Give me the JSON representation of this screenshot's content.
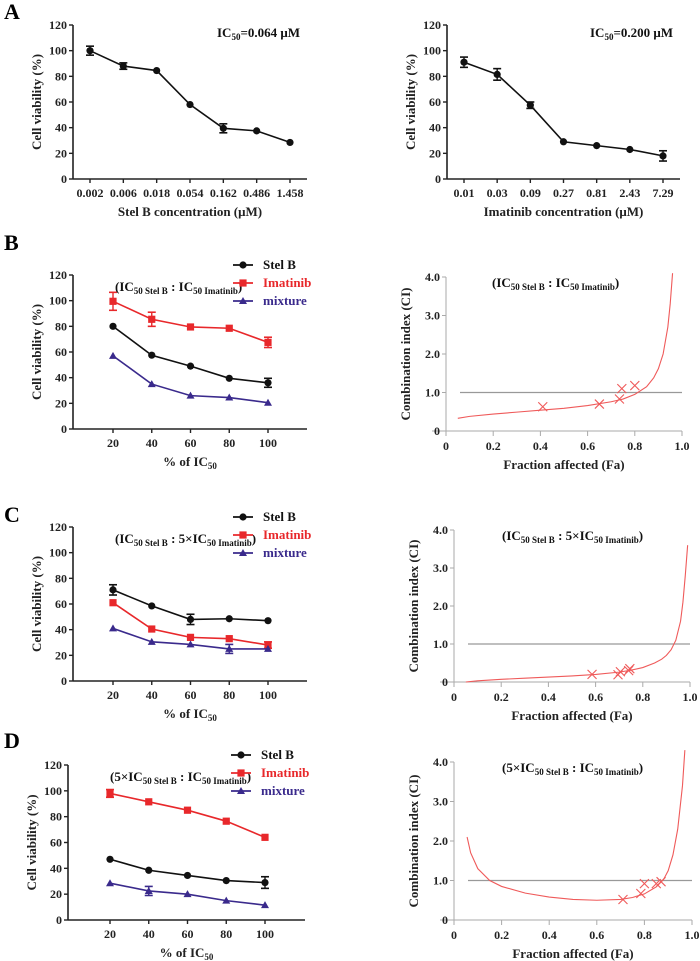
{
  "figure": {
    "panel_labels": [
      "A",
      "B",
      "C",
      "D"
    ],
    "colors": {
      "stel_b": "#111111",
      "imatinib": "#e8282b",
      "mixture": "#3a2a8c",
      "ci_curve": "#ef5a5a",
      "ref_line": "#999999",
      "axis": "#222222"
    }
  },
  "chart_data": [
    {
      "id": "A-left",
      "panel": "A",
      "type": "line",
      "title": "",
      "annotation": "IC50=0.064 μM",
      "annotation_parts": {
        "main": "IC",
        "sub": "50",
        "rest": "=0.064 μM"
      },
      "xlabel": "Stel B concentration (μM)",
      "ylabel": "Cell viability (%)",
      "categories": [
        "0.002",
        "0.006",
        "0.018",
        "0.054",
        "0.162",
        "0.486",
        "1.458"
      ],
      "ylim": [
        0,
        120
      ],
      "yticks": [
        0,
        20,
        40,
        60,
        80,
        100,
        120
      ],
      "series": [
        {
          "name": "Stel B",
          "color_key": "stel_b",
          "marker": "circle",
          "values": [
            100,
            88,
            84.5,
            58,
            39.5,
            37.5,
            28.5
          ],
          "errors": [
            3.5,
            2.5,
            0,
            0,
            3.5,
            0,
            0
          ]
        }
      ]
    },
    {
      "id": "A-right",
      "panel": "A",
      "type": "line",
      "annotation_parts": {
        "main": "IC",
        "sub": "50",
        "rest": "=0.200 μM"
      },
      "annotation": "IC50=0.200 μM",
      "xlabel": "Imatinib concentration (μM)",
      "ylabel": "Cell viability (%)",
      "categories": [
        "0.01",
        "0.03",
        "0.09",
        "0.27",
        "0.81",
        "2.43",
        "7.29"
      ],
      "ylim": [
        0,
        120
      ],
      "yticks": [
        0,
        20,
        40,
        60,
        80,
        100,
        120
      ],
      "series": [
        {
          "name": "Imatinib",
          "color_key": "stel_b",
          "marker": "circle",
          "values": [
            91,
            81.5,
            57.5,
            29,
            26,
            23,
            18
          ],
          "errors": [
            4,
            4.5,
            2.5,
            0,
            0,
            0,
            4
          ]
        }
      ]
    },
    {
      "id": "B-left",
      "panel": "B",
      "type": "line",
      "annotation": "(IC50 Stel B : IC50 Imatinib)",
      "xlabel": "% of IC50",
      "xlabel_parts": {
        "main": "% of IC",
        "sub": "50"
      },
      "ylabel": "Cell viability (%)",
      "categories": [
        "20",
        "40",
        "60",
        "80",
        "100"
      ],
      "ylim": [
        0,
        120
      ],
      "yticks": [
        0,
        20,
        40,
        60,
        80,
        100,
        120
      ],
      "legend": [
        "Stel B",
        "Imatinib",
        "mixture"
      ],
      "legend_position": "top-right",
      "series": [
        {
          "name": "Stel B",
          "color_key": "stel_b",
          "marker": "circle",
          "values": [
            80,
            57.5,
            49,
            39.5,
            36
          ],
          "errors": [
            0,
            0,
            0,
            0,
            3.5
          ]
        },
        {
          "name": "Imatinib",
          "color_key": "imatinib",
          "marker": "square",
          "values": [
            99.5,
            85.5,
            79.5,
            78.5,
            67.5
          ],
          "errors": [
            7,
            5.5,
            0,
            0,
            4
          ]
        },
        {
          "name": "mixture",
          "color_key": "mixture",
          "marker": "triangle",
          "values": [
            57,
            35,
            26,
            24.5,
            20.5
          ],
          "errors": [
            0,
            0,
            0,
            0,
            0
          ]
        }
      ]
    },
    {
      "id": "B-right",
      "panel": "B",
      "type": "scatter",
      "annotation": "(IC50 Stel B : IC50 Imatinib)",
      "xlabel": "Fraction affected (Fa)",
      "ylabel": "Combination index (CI)",
      "xlim": [
        0,
        1.0
      ],
      "xticks": [
        "0",
        "0.2",
        "0.4",
        "0.6",
        "0.8",
        "1.0"
      ],
      "ylim": [
        0,
        4.0
      ],
      "yticks": [
        "0",
        "1.0",
        "2.0",
        "3.0",
        "4.0"
      ],
      "reference_line": 1.0,
      "points": [
        {
          "fa": 0.41,
          "ci": 0.63
        },
        {
          "fa": 0.65,
          "ci": 0.7
        },
        {
          "fa": 0.735,
          "ci": 0.83
        },
        {
          "fa": 0.745,
          "ci": 1.1
        },
        {
          "fa": 0.8,
          "ci": 1.18
        }
      ],
      "curve": {
        "fa": [
          0.05,
          0.1,
          0.2,
          0.3,
          0.4,
          0.5,
          0.6,
          0.7,
          0.75,
          0.8,
          0.85,
          0.88,
          0.9,
          0.92,
          0.94,
          0.95,
          0.96
        ],
        "ci": [
          0.33,
          0.38,
          0.44,
          0.49,
          0.54,
          0.59,
          0.66,
          0.76,
          0.83,
          0.95,
          1.15,
          1.38,
          1.62,
          2.0,
          2.7,
          3.3,
          4.1
        ]
      }
    },
    {
      "id": "C-left",
      "panel": "C",
      "type": "line",
      "annotation": "(IC50 Stel B : 5×IC50 Imatinib)",
      "xlabel": "% of IC50",
      "xlabel_parts": {
        "main": "% of IC",
        "sub": "50"
      },
      "ylabel": "Cell viability (%)",
      "categories": [
        "20",
        "40",
        "60",
        "80",
        "100"
      ],
      "ylim": [
        0,
        120
      ],
      "yticks": [
        0,
        20,
        40,
        60,
        80,
        100,
        120
      ],
      "legend": [
        "Stel B",
        "Imatinib",
        "mixture"
      ],
      "legend_position": "top-right",
      "series": [
        {
          "name": "Stel B",
          "color_key": "stel_b",
          "marker": "circle",
          "values": [
            71,
            58.5,
            48,
            48.5,
            47
          ],
          "errors": [
            4,
            0,
            4,
            0,
            0
          ]
        },
        {
          "name": "Imatinib",
          "color_key": "imatinib",
          "marker": "square",
          "values": [
            61,
            40.5,
            34,
            33,
            28
          ],
          "errors": [
            0,
            0,
            0,
            0,
            2.5
          ]
        },
        {
          "name": "mixture",
          "color_key": "mixture",
          "marker": "triangle",
          "values": [
            41,
            30.5,
            28.5,
            25,
            25
          ],
          "errors": [
            0,
            0,
            0,
            3.5,
            0
          ]
        }
      ]
    },
    {
      "id": "C-right",
      "panel": "C",
      "type": "scatter",
      "annotation": "(IC50 Stel B : 5×IC50 Imatinib)",
      "xlabel": "Fraction affected (Fa)",
      "ylabel": "Combination index (CI)",
      "xlim": [
        0,
        1.0
      ],
      "xticks": [
        "0",
        "0.2",
        "0.4",
        "0.6",
        "0.8",
        "1.0"
      ],
      "ylim": [
        0,
        4.0
      ],
      "yticks": [
        "0",
        "1.0",
        "2.0",
        "3.0",
        "4.0"
      ],
      "reference_line": 1.0,
      "points": [
        {
          "fa": 0.585,
          "ci": 0.2
        },
        {
          "fa": 0.695,
          "ci": 0.19
        },
        {
          "fa": 0.705,
          "ci": 0.27
        },
        {
          "fa": 0.74,
          "ci": 0.3
        },
        {
          "fa": 0.745,
          "ci": 0.35
        }
      ],
      "curve": {
        "fa": [
          0.05,
          0.1,
          0.2,
          0.3,
          0.4,
          0.5,
          0.6,
          0.7,
          0.75,
          0.8,
          0.85,
          0.88,
          0.9,
          0.92,
          0.94,
          0.96,
          0.97,
          0.98,
          0.99
        ],
        "ci": [
          0.0,
          0.03,
          0.07,
          0.1,
          0.13,
          0.16,
          0.2,
          0.26,
          0.31,
          0.38,
          0.5,
          0.6,
          0.7,
          0.85,
          1.1,
          1.6,
          2.1,
          2.8,
          3.6
        ]
      }
    },
    {
      "id": "D-left",
      "panel": "D",
      "type": "line",
      "annotation": "(5×IC50 Stel B : IC50 Imatinib)",
      "xlabel": "% of IC50",
      "xlabel_parts": {
        "main": "% of IC",
        "sub": "50"
      },
      "ylabel": "Cell viability (%)",
      "categories": [
        "20",
        "40",
        "60",
        "80",
        "100"
      ],
      "ylim": [
        0,
        120
      ],
      "yticks": [
        0,
        20,
        40,
        60,
        80,
        100,
        120
      ],
      "legend": [
        "Stel B",
        "Imatinib",
        "mixture"
      ],
      "legend_position": "top-right",
      "series": [
        {
          "name": "Stel B",
          "color_key": "stel_b",
          "marker": "circle",
          "values": [
            47,
            38.5,
            34.5,
            30.5,
            29
          ],
          "errors": [
            0,
            0,
            0,
            0,
            4.5
          ]
        },
        {
          "name": "Imatinib",
          "color_key": "imatinib",
          "marker": "square",
          "values": [
            98,
            91.5,
            85,
            76.5,
            64
          ],
          "errors": [
            3,
            0,
            0,
            0,
            0
          ]
        },
        {
          "name": "mixture",
          "color_key": "mixture",
          "marker": "triangle",
          "values": [
            28.5,
            22.5,
            20,
            15,
            11.5
          ],
          "errors": [
            0,
            3.5,
            0,
            0,
            0
          ]
        }
      ]
    },
    {
      "id": "D-right",
      "panel": "D",
      "type": "scatter",
      "annotation": "(5×IC50 Stel B : IC50 Imatinib)",
      "xlabel": "Fraction affected (Fa)",
      "ylabel": "Combination index (CI)",
      "xlim": [
        0,
        1.0
      ],
      "xticks": [
        "0",
        "0.2",
        "0.4",
        "0.6",
        "0.8",
        "1.0"
      ],
      "ylim": [
        0,
        4.0
      ],
      "yticks": [
        "0",
        "1.0",
        "2.0",
        "3.0",
        "4.0"
      ],
      "reference_line": 1.0,
      "points": [
        {
          "fa": 0.71,
          "ci": 0.52
        },
        {
          "fa": 0.785,
          "ci": 0.67
        },
        {
          "fa": 0.8,
          "ci": 0.92
        },
        {
          "fa": 0.85,
          "ci": 0.92
        },
        {
          "fa": 0.87,
          "ci": 0.97
        }
      ],
      "curve": {
        "fa": [
          0.055,
          0.07,
          0.1,
          0.15,
          0.2,
          0.3,
          0.4,
          0.5,
          0.6,
          0.7,
          0.75,
          0.8,
          0.85,
          0.88,
          0.9,
          0.92,
          0.94,
          0.96,
          0.97
        ],
        "ci": [
          2.1,
          1.7,
          1.3,
          1.0,
          0.85,
          0.68,
          0.58,
          0.52,
          0.5,
          0.52,
          0.57,
          0.66,
          0.84,
          1.02,
          1.25,
          1.65,
          2.3,
          3.4,
          4.3
        ]
      }
    }
  ]
}
